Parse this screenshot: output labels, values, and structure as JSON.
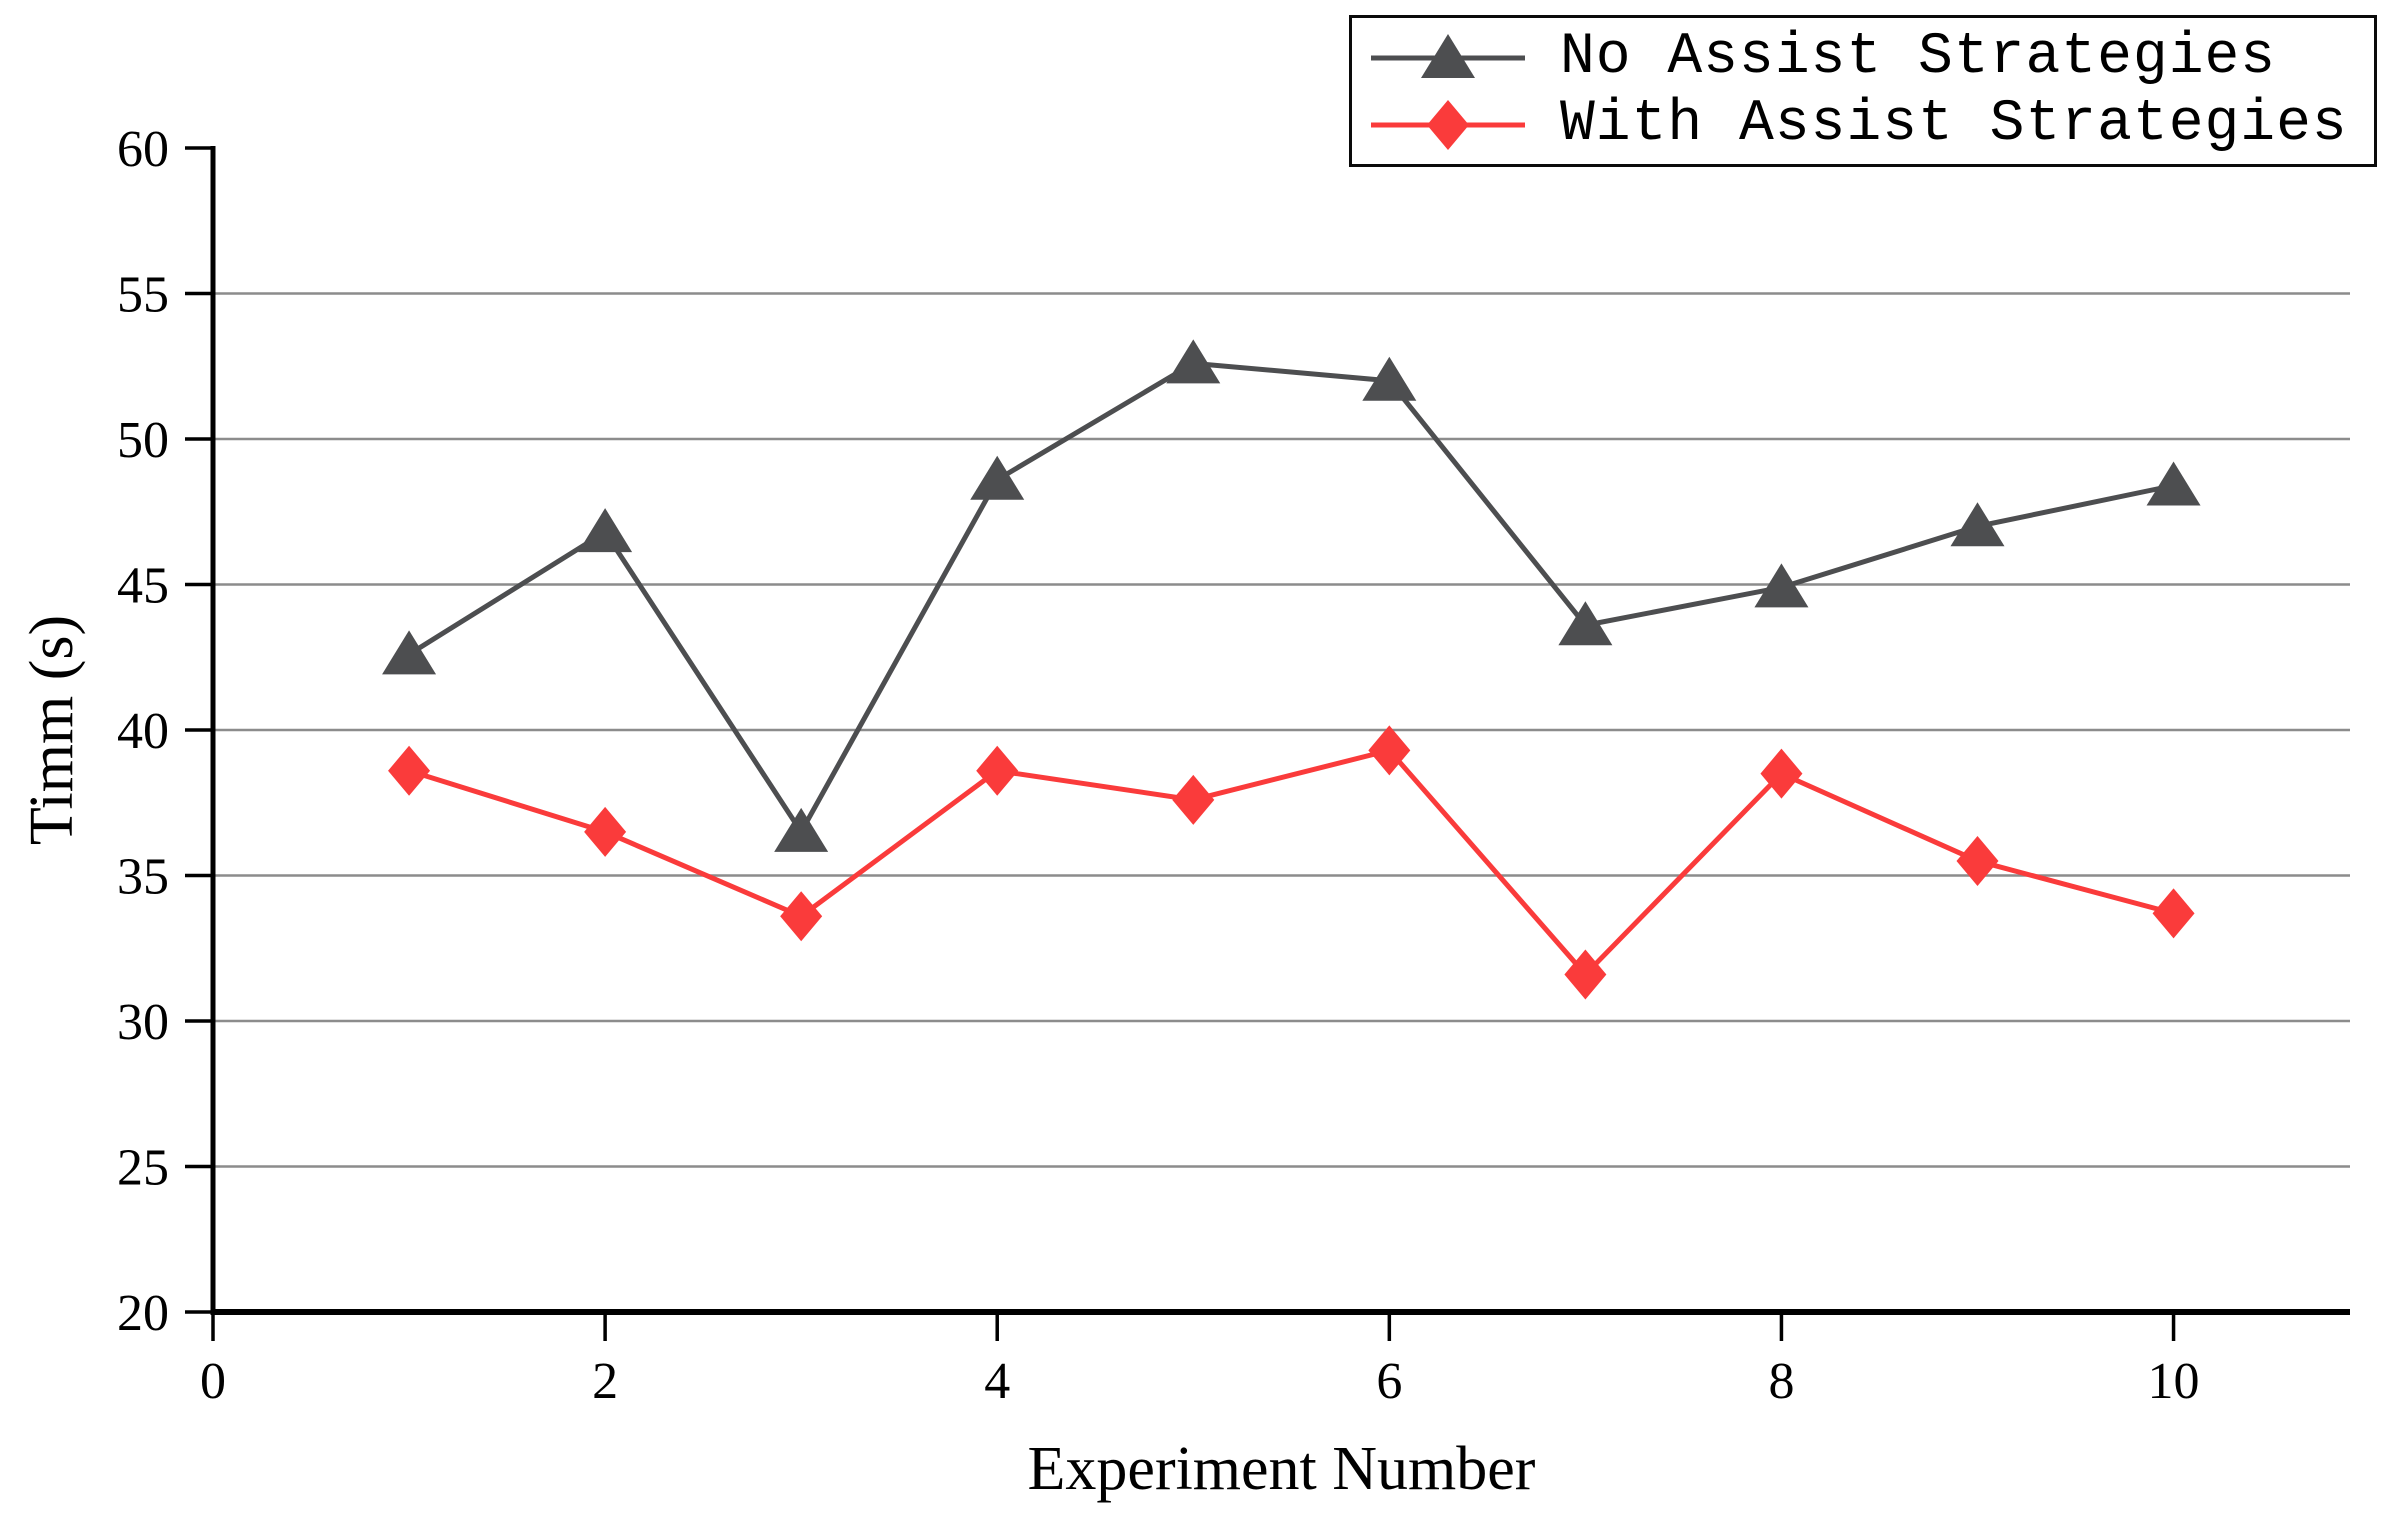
{
  "chart_data": {
    "type": "line",
    "title": "",
    "xlabel": "Experiment Number",
    "ylabel": "Timm (s)",
    "x": [
      1,
      2,
      3,
      4,
      5,
      6,
      7,
      8,
      9,
      10
    ],
    "series": [
      {
        "name": "No Assist Strategies",
        "color": "#4d4e50",
        "marker": "triangle-up",
        "values": [
          42.6,
          46.8,
          36.5,
          48.6,
          52.6,
          52.0,
          43.6,
          44.9,
          47.0,
          48.4
        ]
      },
      {
        "name": "With Assist Strategies",
        "color": "#fa3b3b",
        "marker": "diamond",
        "values": [
          38.6,
          36.5,
          33.6,
          38.6,
          37.6,
          39.3,
          31.6,
          38.5,
          35.5,
          33.7
        ]
      }
    ],
    "xlim": [
      0,
      10.9
    ],
    "ylim": [
      20,
      60
    ],
    "xticks": [
      0,
      2,
      4,
      6,
      8,
      10
    ],
    "yticks": [
      20,
      25,
      30,
      35,
      40,
      45,
      50,
      55,
      60
    ],
    "grid_y": [
      25,
      30,
      35,
      40,
      45,
      50,
      55
    ],
    "grid_on": true,
    "grid_color": "#8c8c8c",
    "axis_color": "#000000",
    "legend_position": "top-right"
  }
}
